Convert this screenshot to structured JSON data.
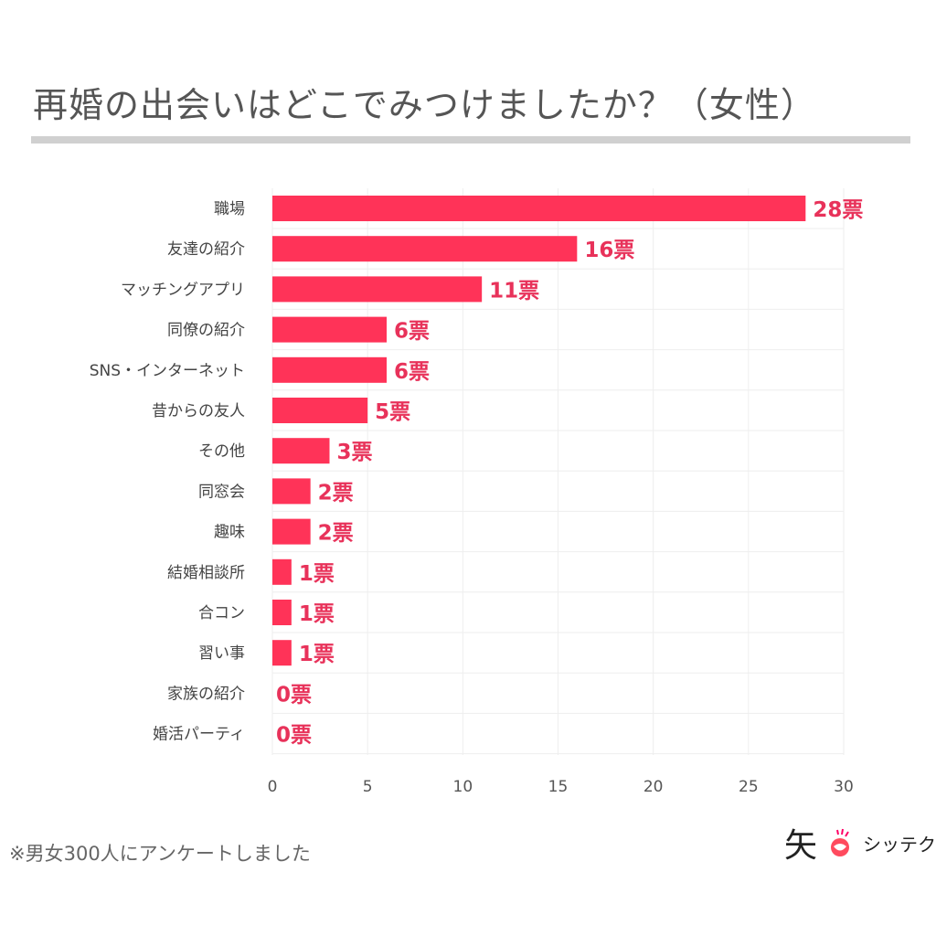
{
  "title": "再婚の出会いはどこでみつけましたか？（女性）",
  "footnote": "※男女300人にアンケートしました",
  "logo": {
    "kanji": "矢",
    "text": "シッテク",
    "icon": "smiling-face-icon"
  },
  "colors": {
    "bar": "#ff3358",
    "label": "#e8325a",
    "grid": "#eeeeee"
  },
  "chart_data": {
    "type": "bar",
    "orientation": "horizontal",
    "categories": [
      "職場",
      "友達の紹介",
      "マッチングアプリ",
      "同僚の紹介",
      "SNS・インターネット",
      "昔からの友人",
      "その他",
      "同窓会",
      "趣味",
      "結婚相談所",
      "合コン",
      "習い事",
      "家族の紹介",
      "婚活パーティ"
    ],
    "values": [
      28,
      16,
      11,
      6,
      6,
      5,
      3,
      2,
      2,
      1,
      1,
      1,
      0,
      0
    ],
    "value_suffix": "票",
    "xlim": [
      0,
      30
    ],
    "xticks": [
      0,
      5,
      10,
      15,
      20,
      25,
      30
    ],
    "grid": true
  }
}
